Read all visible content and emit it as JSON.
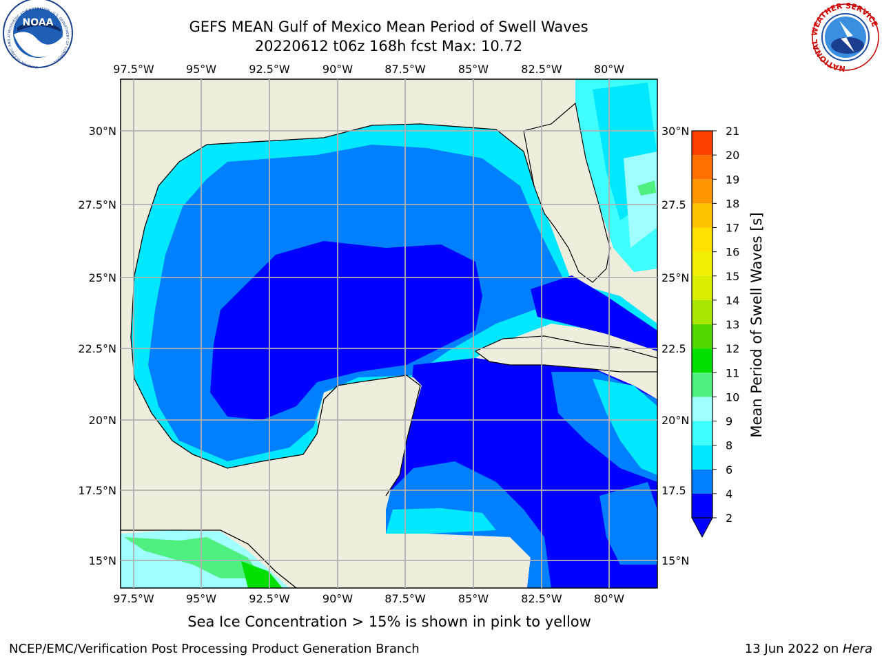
{
  "title_line1": "GEFS MEAN Gulf of Mexico Mean Period of Swell Waves",
  "title_line2": "20220612 t06z 168h fcst   Max: 10.72",
  "lon_ticks": [
    "97.5°W",
    "95°W",
    "92.5°W",
    "90°W",
    "87.5°W",
    "85°W",
    "82.5°W",
    "80°W"
  ],
  "lat_ticks_left": [
    "30°N",
    "27.5°N",
    "25°N",
    "22.5°N",
    "20°N",
    "17.5°N",
    "15°N"
  ],
  "lat_ticks_right": [
    "30°N",
    "27.5",
    "25°N",
    "22.5",
    "20°N",
    "17.5",
    "15°N"
  ],
  "colorbar": {
    "label": "Mean Period of Swell Waves [s]",
    "ticks": [
      "2",
      "4",
      "6",
      "8",
      "9",
      "10",
      "11",
      "12",
      "13",
      "14",
      "15",
      "16",
      "17",
      "18",
      "19",
      "20",
      "21"
    ],
    "colors": [
      "#0000ff",
      "#0080ff",
      "#00e8ff",
      "#40ffff",
      "#a0ffff",
      "#50f080",
      "#00e000",
      "#50d800",
      "#a8e800",
      "#d8f000",
      "#f0f000",
      "#ffe000",
      "#ffc000",
      "#ff9800",
      "#ff7000",
      "#ff4000",
      "#ff0000"
    ]
  },
  "subtitle": "Sea Ice Concentration > 15% is shown in pink to yellow",
  "footer_left": "NCEP/EMC/Verification Post Processing Product Generation Branch",
  "footer_right_prefix": "13 Jun 2022 on ",
  "footer_right_host": "Hera",
  "logos": {
    "noaa": {
      "text": "NOAA",
      "ring": "NATIONAL OCEANIC AND ATMOSPHERIC ADMINISTRATION · U.S. DEPARTMENT OF COMMERCE"
    },
    "nws": {
      "ring": "NATIONAL WEATHER SERVICE"
    }
  }
}
